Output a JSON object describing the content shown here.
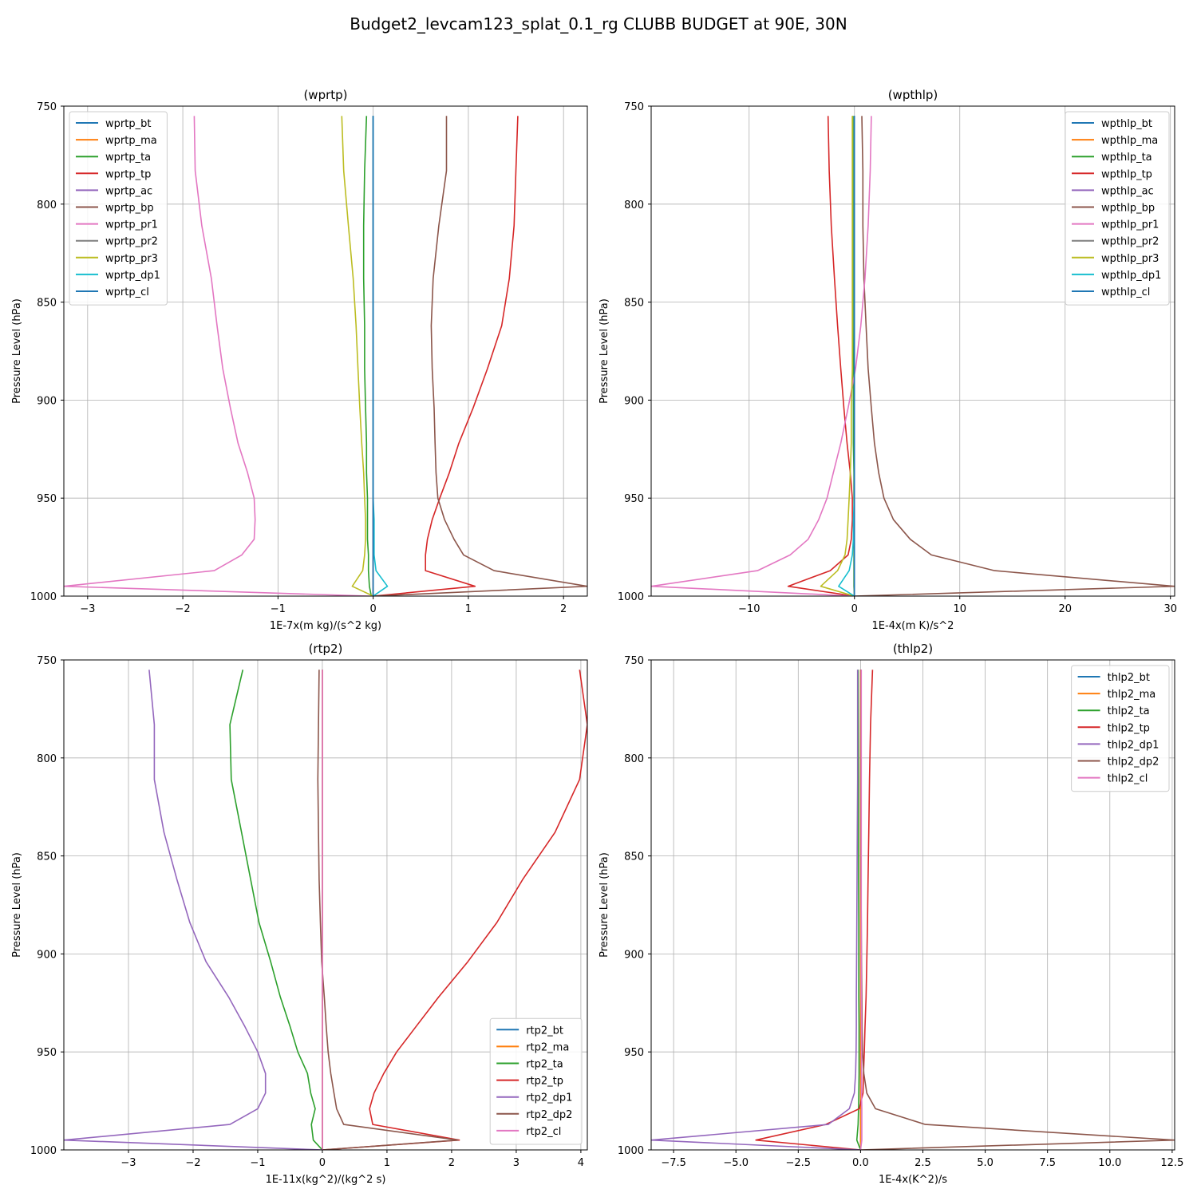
{
  "suptitle": "Budget2_levcam123_splat_0.1_rg CLUBB BUDGET at 90E, 30N",
  "levels": [
    1000,
    995,
    987,
    979,
    971,
    961,
    950,
    937,
    922,
    904,
    884,
    862,
    838,
    811,
    783,
    755
  ],
  "chart_data": [
    {
      "type": "line",
      "title": "(wprtp)",
      "xlabel": "1E-7x(m kg)/(s^2 kg)",
      "ylabel": "Pressure Level (hPa)",
      "xlim": [
        -3.25,
        2.25
      ],
      "ylim": [
        1000,
        750
      ],
      "xticks": [
        -3,
        -2,
        -1,
        0,
        1,
        2
      ],
      "xtick_labels": [
        "−3",
        "−2",
        "−1",
        "0",
        "1",
        "2"
      ],
      "yticks": [
        750,
        800,
        850,
        900,
        950,
        1000
      ],
      "legend": "upper-left",
      "grid": true,
      "series": [
        {
          "name": "wprtp_bt",
          "color": "#1f77b4",
          "values": [
            0,
            0,
            0,
            0,
            0,
            0,
            0,
            0,
            0,
            0,
            0,
            0,
            0,
            0,
            0,
            0
          ]
        },
        {
          "name": "wprtp_ma",
          "color": "#ff7f0e",
          "values": [
            0,
            0,
            0,
            0,
            0,
            0,
            0,
            0,
            0,
            0,
            0,
            0,
            0,
            0,
            0,
            0
          ]
        },
        {
          "name": "wprtp_ta",
          "color": "#2ca02c",
          "values": [
            -0.02,
            -0.04,
            -0.05,
            -0.05,
            -0.06,
            -0.06,
            -0.06,
            -0.07,
            -0.07,
            -0.08,
            -0.09,
            -0.09,
            -0.1,
            -0.1,
            -0.09,
            -0.07
          ]
        },
        {
          "name": "wprtp_tp",
          "color": "#d62728",
          "values": [
            0,
            1.07,
            0.55,
            0.55,
            0.57,
            0.62,
            0.7,
            0.8,
            0.9,
            1.05,
            1.2,
            1.35,
            1.43,
            1.48,
            1.5,
            1.52
          ]
        },
        {
          "name": "wprtp_ac",
          "color": "#9467bd",
          "values": [
            0,
            0,
            0,
            0,
            0,
            0,
            0,
            0,
            0,
            0,
            0,
            0,
            0,
            0,
            0,
            0
          ]
        },
        {
          "name": "wprtp_bp",
          "color": "#8c564b",
          "values": [
            0,
            2.25,
            1.27,
            0.95,
            0.85,
            0.75,
            0.68,
            0.66,
            0.65,
            0.64,
            0.62,
            0.61,
            0.63,
            0.69,
            0.77,
            0.77
          ]
        },
        {
          "name": "wprtp_pr1",
          "color": "#e377c2",
          "values": [
            -0.04,
            -3.25,
            -1.67,
            -1.38,
            -1.25,
            -1.24,
            -1.25,
            -1.32,
            -1.42,
            -1.5,
            -1.58,
            -1.64,
            -1.7,
            -1.8,
            -1.87,
            -1.88
          ]
        },
        {
          "name": "wprtp_pr2",
          "color": "#7f7f7f",
          "values": [
            0,
            0,
            0,
            0,
            0,
            0,
            0,
            0,
            0,
            0,
            0,
            0,
            0,
            0,
            0,
            0
          ]
        },
        {
          "name": "wprtp_pr3",
          "color": "#bcbd22",
          "values": [
            0,
            -0.22,
            -0.11,
            -0.09,
            -0.08,
            -0.08,
            -0.09,
            -0.1,
            -0.12,
            -0.14,
            -0.16,
            -0.18,
            -0.21,
            -0.26,
            -0.31,
            -0.33
          ]
        },
        {
          "name": "wprtp_dp1",
          "color": "#17becf",
          "values": [
            0,
            0.15,
            0.03,
            0.01,
            0.01,
            0.01,
            0,
            0,
            0,
            0,
            0,
            0,
            0,
            0,
            0,
            0
          ]
        },
        {
          "name": "wprtp_cl",
          "color": "#1f77b4",
          "values": [
            0,
            0,
            0,
            0,
            0,
            0,
            0,
            0,
            0,
            0,
            0,
            0,
            0,
            0,
            0,
            0
          ]
        }
      ]
    },
    {
      "type": "line",
      "title": "(wpthlp)",
      "xlabel": "1E-4x(m K)/s^2",
      "ylabel": "Pressure Level (hPa)",
      "xlim": [
        -19.3,
        30.4
      ],
      "ylim": [
        1000,
        750
      ],
      "xticks": [
        -10,
        0,
        10,
        20,
        30
      ],
      "xtick_labels": [
        "−10",
        "0",
        "10",
        "20",
        "30"
      ],
      "yticks": [
        750,
        800,
        850,
        900,
        950,
        1000
      ],
      "legend": "upper-right",
      "grid": true,
      "series": [
        {
          "name": "wpthlp_bt",
          "color": "#1f77b4",
          "values": [
            0,
            0,
            0,
            0,
            0,
            0,
            0,
            0,
            0,
            0,
            0,
            0,
            0,
            0,
            0,
            0
          ]
        },
        {
          "name": "wpthlp_ma",
          "color": "#ff7f0e",
          "values": [
            0,
            0,
            0,
            0,
            0,
            0,
            0,
            0,
            0,
            0,
            0,
            0,
            0,
            0,
            0,
            0
          ]
        },
        {
          "name": "wpthlp_ta",
          "color": "#2ca02c",
          "values": [
            0,
            -0.05,
            -0.05,
            -0.05,
            -0.05,
            -0.05,
            -0.05,
            -0.05,
            -0.1,
            -0.1,
            -0.1,
            -0.15,
            -0.15,
            -0.15,
            -0.15,
            -0.15
          ]
        },
        {
          "name": "wpthlp_tp",
          "color": "#d62728",
          "values": [
            0,
            -6.3,
            -2.3,
            -0.6,
            -0.3,
            -0.2,
            -0.2,
            -0.4,
            -0.7,
            -1.0,
            -1.3,
            -1.6,
            -1.9,
            -2.2,
            -2.4,
            -2.5
          ]
        },
        {
          "name": "wpthlp_ac",
          "color": "#9467bd",
          "values": [
            0,
            0,
            0,
            0,
            0,
            0,
            0,
            0,
            0,
            0,
            0,
            0,
            0,
            0,
            0,
            0
          ]
        },
        {
          "name": "wpthlp_bp",
          "color": "#8c564b",
          "values": [
            0,
            30.4,
            13.3,
            7.3,
            5.3,
            3.7,
            2.8,
            2.3,
            1.9,
            1.6,
            1.3,
            1.1,
            0.9,
            0.8,
            0.8,
            0.7
          ]
        },
        {
          "name": "wpthlp_pr1",
          "color": "#e377c2",
          "values": [
            0,
            -19.3,
            -9.2,
            -6.1,
            -4.4,
            -3.4,
            -2.6,
            -2.0,
            -1.3,
            -0.6,
            0.1,
            0.6,
            1.0,
            1.3,
            1.5,
            1.6
          ]
        },
        {
          "name": "wpthlp_pr2",
          "color": "#7f7f7f",
          "values": [
            0,
            0,
            0,
            0,
            0,
            0,
            0,
            0,
            0,
            0,
            0,
            0,
            0,
            0,
            0,
            0
          ]
        },
        {
          "name": "wpthlp_pr3",
          "color": "#bcbd22",
          "values": [
            0,
            -3.2,
            -1.6,
            -0.9,
            -0.7,
            -0.6,
            -0.5,
            -0.4,
            -0.3,
            -0.3,
            -0.2,
            -0.2,
            -0.2,
            -0.2,
            -0.2,
            -0.2
          ]
        },
        {
          "name": "wpthlp_dp1",
          "color": "#17becf",
          "values": [
            0,
            -1.5,
            -0.5,
            -0.2,
            -0.1,
            -0.1,
            0,
            0,
            0,
            0,
            0,
            0,
            0,
            0,
            0,
            0
          ]
        },
        {
          "name": "wpthlp_cl",
          "color": "#1f77b4",
          "values": [
            0,
            0,
            0,
            0,
            0,
            0,
            0,
            0,
            0,
            0,
            0,
            0,
            0,
            0,
            0,
            0
          ]
        }
      ]
    },
    {
      "type": "line",
      "title": "(rtp2)",
      "xlabel": "1E-11x(kg^2)/(kg^2 s)",
      "ylabel": "Pressure Level (hPa)",
      "xlim": [
        -4.0,
        4.1
      ],
      "ylim": [
        1000,
        750
      ],
      "xticks": [
        -3,
        -2,
        -1,
        0,
        1,
        2,
        3,
        4
      ],
      "xtick_labels": [
        "−3",
        "−2",
        "−1",
        "0",
        "1",
        "2",
        "3",
        "4"
      ],
      "yticks": [
        750,
        800,
        850,
        900,
        950,
        1000
      ],
      "legend": "lower-right",
      "grid": true,
      "series": [
        {
          "name": "rtp2_bt",
          "color": "#1f77b4",
          "values": [
            0,
            0,
            0,
            0,
            0,
            0,
            0,
            0,
            0,
            0,
            0,
            0,
            0,
            0,
            0,
            0
          ]
        },
        {
          "name": "rtp2_ma",
          "color": "#ff7f0e",
          "values": [
            0,
            0,
            0,
            0,
            0,
            0,
            0,
            0,
            0,
            0,
            0,
            0,
            0,
            0,
            0,
            0
          ]
        },
        {
          "name": "rtp2_ta",
          "color": "#2ca02c",
          "values": [
            0,
            -0.14,
            -0.17,
            -0.11,
            -0.18,
            -0.23,
            -0.38,
            -0.5,
            -0.65,
            -0.8,
            -0.98,
            -1.11,
            -1.25,
            -1.41,
            -1.43,
            -1.23
          ]
        },
        {
          "name": "rtp2_tp",
          "color": "#d62728",
          "values": [
            0,
            2.12,
            0.78,
            0.73,
            0.8,
            0.95,
            1.15,
            1.45,
            1.8,
            2.25,
            2.7,
            3.1,
            3.6,
            3.98,
            4.1,
            3.98
          ]
        },
        {
          "name": "rtp2_dp1",
          "color": "#9467bd",
          "values": [
            0,
            -4.0,
            -1.43,
            -1.0,
            -0.88,
            -0.88,
            -1.0,
            -1.2,
            -1.45,
            -1.8,
            -2.05,
            -2.25,
            -2.45,
            -2.6,
            -2.6,
            -2.68
          ]
        },
        {
          "name": "rtp2_dp2",
          "color": "#8c564b",
          "values": [
            0,
            2.1,
            0.33,
            0.22,
            0.18,
            0.13,
            0.09,
            0.06,
            0.03,
            -0.01,
            -0.03,
            -0.05,
            -0.06,
            -0.07,
            -0.06,
            -0.05
          ]
        },
        {
          "name": "rtp2_cl",
          "color": "#e377c2",
          "values": [
            0,
            0,
            0,
            0,
            0,
            0,
            0,
            0,
            0,
            0,
            0,
            0,
            0,
            0,
            0,
            0
          ]
        }
      ]
    },
    {
      "type": "line",
      "title": "(thlp2)",
      "xlabel": "1E-4x(K^2)/s",
      "ylabel": "Pressure Level (hPa)",
      "xlim": [
        -8.4,
        12.6
      ],
      "ylim": [
        1000,
        750
      ],
      "xticks": [
        -7.5,
        -5.0,
        -2.5,
        0.0,
        2.5,
        5.0,
        7.5,
        10.0,
        12.5
      ],
      "xtick_labels": [
        "−7.5",
        "−5.0",
        "−2.5",
        "0.0",
        "2.5",
        "5.0",
        "7.5",
        "10.0",
        "12.5"
      ],
      "yticks": [
        750,
        800,
        850,
        900,
        950,
        1000
      ],
      "legend": "upper-right",
      "grid": true,
      "series": [
        {
          "name": "thlp2_bt",
          "color": "#1f77b4",
          "values": [
            0,
            0,
            0,
            0,
            0,
            0,
            0,
            0,
            0,
            0,
            0,
            0,
            0,
            0,
            0,
            0
          ]
        },
        {
          "name": "thlp2_ma",
          "color": "#ff7f0e",
          "values": [
            0,
            0,
            0,
            0,
            0,
            0,
            0,
            0,
            0,
            0,
            0,
            0,
            0,
            0,
            0,
            0
          ]
        },
        {
          "name": "thlp2_ta",
          "color": "#2ca02c",
          "values": [
            0,
            -0.15,
            -0.1,
            -0.08,
            -0.07,
            -0.06,
            -0.06,
            -0.06,
            -0.07,
            -0.07,
            -0.07,
            -0.08,
            -0.08,
            -0.08,
            -0.09,
            -0.1
          ]
        },
        {
          "name": "thlp2_tp",
          "color": "#d62728",
          "values": [
            0,
            -4.2,
            -1.4,
            -0.05,
            0.1,
            0.12,
            0.15,
            0.18,
            0.22,
            0.25,
            0.28,
            0.3,
            0.33,
            0.36,
            0.4,
            0.48
          ]
        },
        {
          "name": "thlp2_dp1",
          "color": "#9467bd",
          "values": [
            0,
            -8.4,
            -1.3,
            -0.45,
            -0.25,
            -0.2,
            -0.18,
            -0.17,
            -0.17,
            -0.16,
            -0.15,
            -0.14,
            -0.13,
            -0.12,
            -0.12,
            -0.12
          ]
        },
        {
          "name": "thlp2_dp2",
          "color": "#8c564b",
          "values": [
            0,
            12.6,
            2.6,
            0.6,
            0.25,
            0.13,
            0.08,
            0.06,
            0.05,
            0.04,
            0.03,
            0.02,
            0.02,
            0.02,
            0.02,
            0.02
          ]
        },
        {
          "name": "thlp2_cl",
          "color": "#e377c2",
          "values": [
            0,
            0.05,
            0.05,
            0.05,
            0.04,
            0.04,
            0.04,
            0.04,
            0.03,
            0.03,
            0.03,
            0.03,
            0.03,
            0.03,
            0.03,
            0.03
          ]
        }
      ]
    }
  ]
}
